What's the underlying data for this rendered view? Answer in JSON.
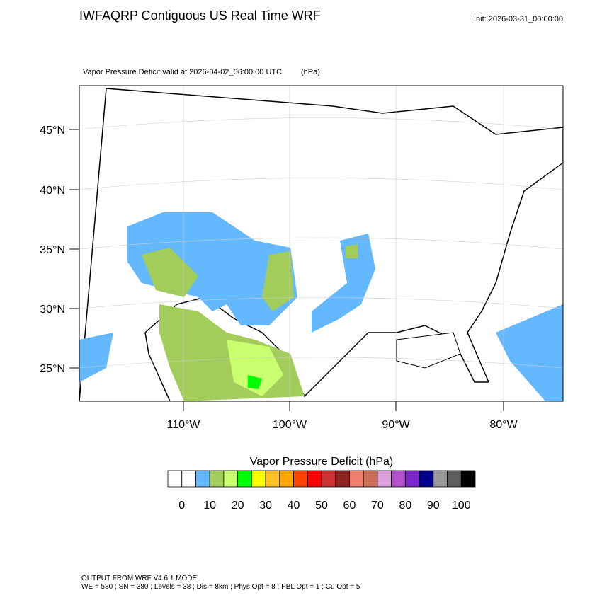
{
  "header": {
    "title": "IWFAQRP Contiguous US Real Time WRF",
    "init": "Init: 2026-03-31_00:00:00"
  },
  "map": {
    "subtitle": "Vapor Pressure Deficit valid at 2026-04-02_06:00:00 UTC",
    "units": "(hPa)",
    "lat_labels": [
      "45°N",
      "40°N",
      "35°N",
      "30°N",
      "25°N"
    ],
    "lon_labels": [
      "110°W",
      "100°W",
      "90°W",
      "80°W"
    ]
  },
  "colorbar": {
    "title": "Vapor Pressure Deficit  (hPa)",
    "colors": [
      "#ffffff",
      "#ffffff",
      "#63b8ff",
      "#a2cd5a",
      "#caff70",
      "#00ff00",
      "#ffff00",
      "#ffc125",
      "#ffa500",
      "#ff4500",
      "#ff0000",
      "#cd3333",
      "#8b2323",
      "#ee7f6d",
      "#cd6f56",
      "#dda0dd",
      "#b452cd",
      "#7f26cd",
      "#00008b",
      "#999999",
      "#5f5f5f",
      "#000000"
    ],
    "ticks": [
      0,
      10,
      20,
      30,
      40,
      50,
      60,
      70,
      80,
      90,
      100
    ]
  },
  "footer": {
    "line1": "OUTPUT FROM WRF V4.6.1 MODEL",
    "line2": "WE = 580 ; SN = 380 ; Levels = 38 ; Dis = 8km ; Phys Opt = 8 ; PBL Opt = 1 ; Cu Opt = 5"
  }
}
